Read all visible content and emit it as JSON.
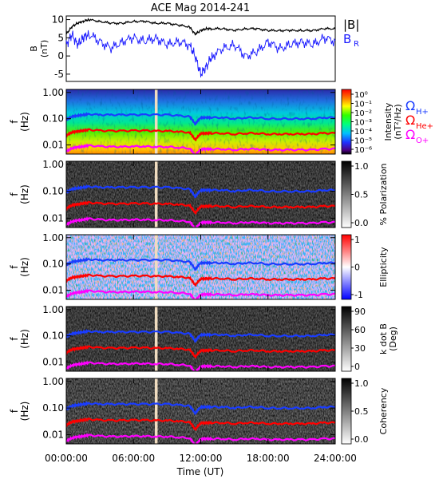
{
  "title": "ACE Mag 2014-241",
  "xlabel": "Time (UT)",
  "x_ticks": [
    "00:00:00",
    "06:00:00",
    "12:00:00",
    "18:00:00",
    "24:00:00"
  ],
  "x_tick_hours": [
    0,
    6,
    12,
    18,
    24
  ],
  "colors": {
    "B_total": "#000000",
    "B_R": "#1a1aff",
    "H_plus": "#1a3cff",
    "He_plus": "#ff0000",
    "O_plus": "#ff00ff",
    "gap": "#f0dcc0"
  },
  "chart_data": [
    {
      "type": "line",
      "panel": "magnetic-field",
      "ylabel": "B\n(nT)",
      "ylabel_lines": [
        "B",
        "(nT)"
      ],
      "ylim": [
        -7,
        11
      ],
      "y_ticks": [
        "10",
        "5",
        "0",
        "-5"
      ],
      "y_tick_values": [
        10,
        5,
        0,
        -5
      ],
      "legend": [
        {
          "text": "|B|",
          "color": "#000000"
        },
        {
          "text": "B",
          "sub": "R",
          "color": "#1a1aff"
        }
      ],
      "series": [
        {
          "name": "|B|",
          "x_hours": [
            0,
            0.5,
            1,
            1.5,
            2,
            3,
            4,
            5,
            6,
            7,
            8,
            9,
            10,
            11,
            11.5,
            12,
            12.5,
            13,
            14,
            15,
            16,
            17,
            18,
            19,
            20,
            21,
            22,
            23,
            24
          ],
          "values": [
            6,
            8,
            9,
            9.5,
            10,
            9.5,
            9,
            9,
            9.5,
            9.5,
            9,
            9,
            8.5,
            8,
            6,
            7,
            7.5,
            7.5,
            7.5,
            7,
            7.5,
            7.5,
            7,
            7,
            7,
            7,
            7,
            7.5,
            7.5
          ]
        },
        {
          "name": "B_R",
          "x_hours": [
            0,
            0.5,
            1,
            1.5,
            2,
            3,
            4,
            5,
            6,
            7,
            8,
            9,
            10,
            11,
            11.5,
            12,
            12.5,
            13,
            14,
            15,
            16,
            17,
            18,
            19,
            20,
            21,
            22,
            23,
            24
          ],
          "values": [
            3,
            6,
            3,
            5,
            6,
            4,
            2,
            4,
            5,
            4,
            5,
            3,
            4,
            3,
            0,
            -5,
            -3,
            0,
            2,
            3,
            0,
            1,
            4,
            2,
            3,
            4,
            3,
            5,
            4
          ]
        }
      ]
    },
    {
      "type": "heatmap",
      "panel": "power-spectral-density",
      "ylabel_lines": [
        "f",
        "(Hz)"
      ],
      "y_ticks": [
        "1.00",
        "0.10",
        "0.01"
      ],
      "colorbar_label": "Intensity\n(nT²/Hz)",
      "colorbar_label_lines": [
        "Intensity",
        "(nT²/Hz)"
      ],
      "colorbar_ticks": [
        "10⁰",
        "10⁻¹",
        "10⁻²",
        "10⁻³",
        "10⁻⁴",
        "10⁻⁵",
        "10⁻⁶"
      ],
      "colorscale": "rainbow",
      "legend": [
        {
          "text": "Ω",
          "sub": "H+",
          "color": "#1a3cff"
        },
        {
          "text": "Ω",
          "sub": "He+",
          "color": "#ff0000"
        },
        {
          "text": "Ω",
          "sub": "O+",
          "color": "#ff00ff"
        }
      ]
    },
    {
      "type": "heatmap",
      "panel": "polarization",
      "ylabel_lines": [
        "f",
        "(Hz)"
      ],
      "y_ticks": [
        "1.00",
        "0.10",
        "0.01"
      ],
      "colorbar_label": "% Polarization",
      "colorbar_ticks": [
        "1.0",
        "0.5",
        "0.0"
      ],
      "colorscale": "gray"
    },
    {
      "type": "heatmap",
      "panel": "ellipticity",
      "ylabel_lines": [
        "f",
        "(Hz)"
      ],
      "y_ticks": [
        "1.00",
        "0.10",
        "0.01"
      ],
      "colorbar_label": "Ellipticity",
      "colorbar_ticks": [
        "1",
        "0",
        "-1"
      ],
      "colorscale": "blue-white-red"
    },
    {
      "type": "heatmap",
      "panel": "k-dot-b",
      "ylabel_lines": [
        "f",
        "(Hz)"
      ],
      "y_ticks": [
        "1.00",
        "0.10",
        "0.01"
      ],
      "colorbar_label": "k dot B\n(Deg)",
      "colorbar_label_lines": [
        "k dot B",
        "(Deg)"
      ],
      "colorbar_ticks": [
        "90",
        "60",
        "30",
        "0"
      ],
      "colorscale": "gray"
    },
    {
      "type": "heatmap",
      "panel": "coherency",
      "ylabel_lines": [
        "f",
        "(Hz)"
      ],
      "y_ticks": [
        "1.00",
        "0.10",
        "0.01"
      ],
      "colorbar_label": "Coherency",
      "colorbar_ticks": [
        "1.0",
        "0.5",
        "0.0"
      ],
      "colorscale": "gray"
    }
  ],
  "gyrofrequency_curves_hz": {
    "x_hours": [
      0,
      0.5,
      1,
      1.5,
      2,
      3,
      4,
      5,
      6,
      7,
      8,
      9,
      10,
      11,
      11.5,
      12,
      12.5,
      13,
      14,
      15,
      16,
      17,
      18,
      19,
      20,
      21,
      22,
      23,
      24
    ],
    "H_plus": [
      0.09,
      0.12,
      0.13,
      0.14,
      0.15,
      0.14,
      0.14,
      0.14,
      0.14,
      0.14,
      0.14,
      0.14,
      0.13,
      0.12,
      0.06,
      0.11,
      0.11,
      0.11,
      0.11,
      0.1,
      0.11,
      0.11,
      0.1,
      0.1,
      0.1,
      0.1,
      0.1,
      0.11,
      0.11
    ],
    "He_plus": [
      0.023,
      0.03,
      0.033,
      0.035,
      0.038,
      0.035,
      0.034,
      0.034,
      0.035,
      0.035,
      0.034,
      0.034,
      0.032,
      0.03,
      0.015,
      0.027,
      0.028,
      0.028,
      0.028,
      0.026,
      0.028,
      0.028,
      0.026,
      0.026,
      0.026,
      0.026,
      0.026,
      0.028,
      0.028
    ],
    "O_plus": [
      0.0057,
      0.0075,
      0.0082,
      0.0088,
      0.0095,
      0.0088,
      0.0085,
      0.0085,
      0.0088,
      0.0088,
      0.0085,
      0.0085,
      0.008,
      0.0075,
      0.0038,
      0.0068,
      0.007,
      0.007,
      0.007,
      0.0065,
      0.007,
      0.007,
      0.0065,
      0.0065,
      0.0065,
      0.0065,
      0.0065,
      0.007,
      0.007
    ]
  },
  "data_gap_hours": [
    7.9,
    8.15
  ]
}
